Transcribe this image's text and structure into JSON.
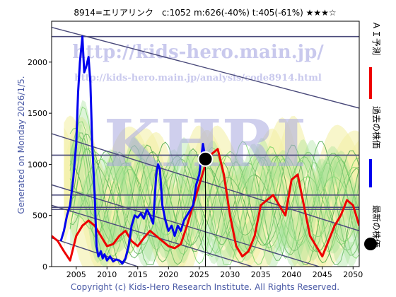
{
  "header": {
    "title": "8914=エリアリンク　c:1052  m:626(-40%)  t:405(-61%)  ★★★☆"
  },
  "side_label": "Generated on Monday 2026/1/5.",
  "footer": "Copyright (c) Kids-Hero Research Institute. All Rights Reserved.",
  "watermark": {
    "url1": "http://kids-hero.main.jp/",
    "url2": "http://kids-hero.main.jp/analysis/code8914.html",
    "logo": "KHRI"
  },
  "legend": [
    {
      "label": "ＡＩ予測",
      "color": "#ee0000",
      "kind": "line"
    },
    {
      "label": "過去の株価",
      "color": "#0000ee",
      "kind": "line"
    },
    {
      "label": "最新の株価",
      "color": "#000000",
      "kind": "dot"
    }
  ],
  "chart_data": {
    "type": "line",
    "title": "8914=エリアリンク　c:1052  m:626(-40%)  t:405(-61%)  ★★★☆",
    "xlim": [
      2001,
      2051
    ],
    "ylim": [
      0,
      2400
    ],
    "x_ticks": [
      "2005",
      "2010",
      "2015",
      "2020",
      "2025",
      "2030",
      "2035",
      "2040",
      "2045",
      "2050"
    ],
    "y_ticks": [
      "0",
      "500",
      "1000",
      "1500",
      "2000"
    ],
    "grid": false,
    "latest_point": {
      "x": 2026.0,
      "y": 1052
    },
    "horizontal_lines": [
      2250,
      1090,
      700,
      580,
      560
    ],
    "trend_lines": [
      {
        "x1": 2001,
        "y1": 2340,
        "x2": 2051,
        "y2": 1550
      },
      {
        "x1": 2001,
        "y1": 1300,
        "x2": 2051,
        "y2": 350
      },
      {
        "x1": 2001,
        "y1": 800,
        "x2": 2051,
        "y2": -120
      },
      {
        "x1": 2001,
        "y1": 600,
        "x2": 2051,
        "y2": -320
      },
      {
        "x1": 2001,
        "y1": 280,
        "x2": 2030,
        "y2": -300
      }
    ],
    "series": [
      {
        "name": "過去の株価",
        "color": "#0000ee",
        "x": [
          2002.5,
          2003.0,
          2003.5,
          2004.0,
          2004.5,
          2005.0,
          2005.3,
          2005.6,
          2006.0,
          2006.3,
          2006.6,
          2007.0,
          2007.3,
          2007.6,
          2008.0,
          2008.3,
          2008.6,
          2009.0,
          2009.3,
          2009.6,
          2010.0,
          2010.5,
          2011.0,
          2011.5,
          2012.0,
          2012.5,
          2013.0,
          2013.5,
          2014.0,
          2014.5,
          2015.0,
          2015.5,
          2016.0,
          2016.5,
          2017.0,
          2017.5,
          2018.0,
          2018.3,
          2018.6,
          2019.0,
          2019.5,
          2020.0,
          2020.5,
          2021.0,
          2021.5,
          2022.0,
          2022.5,
          2023.0,
          2023.5,
          2024.0,
          2024.5,
          2025.0,
          2025.3,
          2025.6,
          2026.0
        ],
        "y": [
          250,
          350,
          500,
          600,
          850,
          1200,
          1700,
          2000,
          2250,
          1900,
          1950,
          2050,
          1800,
          1200,
          700,
          200,
          100,
          150,
          80,
          120,
          60,
          100,
          50,
          70,
          60,
          30,
          80,
          200,
          400,
          500,
          480,
          520,
          470,
          560,
          500,
          420,
          900,
          1000,
          950,
          600,
          450,
          350,
          400,
          300,
          400,
          350,
          450,
          500,
          550,
          600,
          800,
          900,
          1050,
          1200,
          1052
        ]
      },
      {
        "name": "ＡＩ予測",
        "color": "#ee0000",
        "x": [
          2001,
          2002,
          2003,
          2004,
          2005,
          2006,
          2007,
          2008,
          2009,
          2010,
          2011,
          2012,
          2013,
          2014,
          2015,
          2016,
          2017,
          2018,
          2019,
          2020,
          2021,
          2022,
          2023,
          2024,
          2025,
          2026,
          2027,
          2028,
          2029,
          2030,
          2031,
          2032,
          2033,
          2034,
          2035,
          2036,
          2037,
          2038,
          2039,
          2040,
          2041,
          2042,
          2043,
          2044,
          2045,
          2046,
          2047,
          2048,
          2049,
          2050,
          2051
        ],
        "y": [
          300,
          250,
          150,
          60,
          300,
          400,
          450,
          400,
          300,
          200,
          220,
          300,
          350,
          250,
          200,
          280,
          350,
          300,
          250,
          200,
          180,
          220,
          400,
          600,
          800,
          1000,
          1100,
          1150,
          900,
          500,
          200,
          100,
          150,
          300,
          600,
          650,
          700,
          600,
          500,
          850,
          900,
          600,
          300,
          200,
          100,
          250,
          400,
          500,
          650,
          600,
          400
        ]
      }
    ]
  }
}
